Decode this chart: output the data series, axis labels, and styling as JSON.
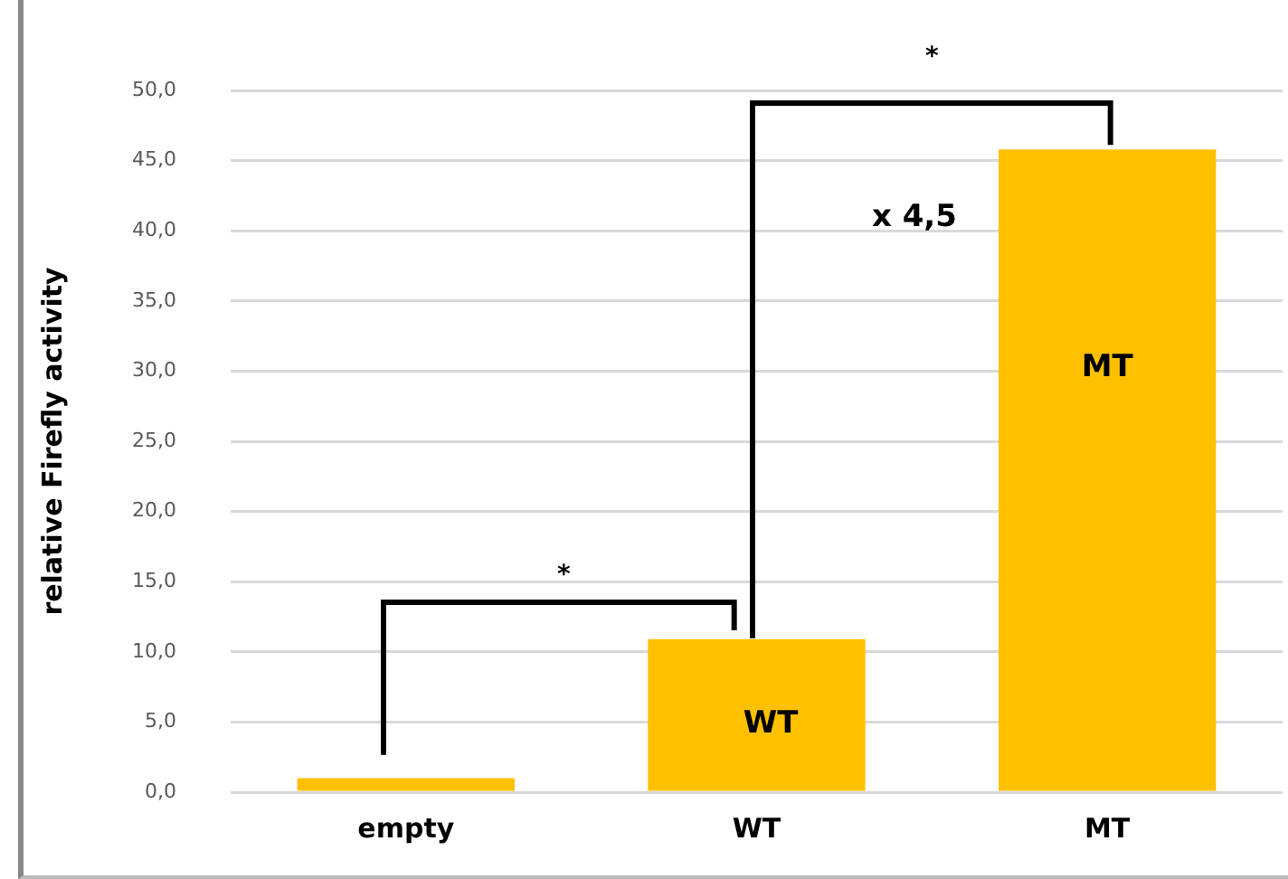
{
  "chart_data": {
    "type": "bar",
    "ylabel": "relative Firefly activity",
    "categories": [
      "empty",
      "WT",
      "MT"
    ],
    "values": [
      1.0,
      10.9,
      45.8
    ],
    "color": "#ffc000",
    "ylim": [
      0,
      50
    ],
    "yticks": [
      {
        "value": 0,
        "label": "0,0"
      },
      {
        "value": 5,
        "label": "5,0"
      },
      {
        "value": 10,
        "label": "10,0"
      },
      {
        "value": 15,
        "label": "15,0"
      },
      {
        "value": 20,
        "label": "20,0"
      },
      {
        "value": 25,
        "label": "25,0"
      },
      {
        "value": 30,
        "label": "30,0"
      },
      {
        "value": 35,
        "label": "35,0"
      },
      {
        "value": 40,
        "label": "40,0"
      },
      {
        "value": 45,
        "label": "45,0"
      },
      {
        "value": 50,
        "label": "50,0"
      }
    ],
    "grid": "y",
    "legend": false,
    "annotations": [
      "*",
      "*",
      "x 4,5",
      "WT",
      "MT"
    ]
  }
}
